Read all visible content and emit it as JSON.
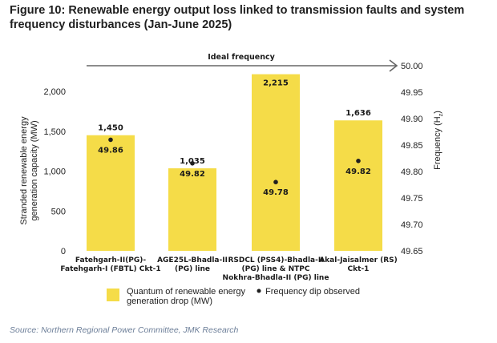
{
  "title": "Figure 10: Renewable energy output loss linked to transmission faults and system frequency disturbances (Jan-June 2025)",
  "source": "Source: Northern Regional Power Committee, JMK Research",
  "colors": {
    "bar": "#f5dc48",
    "dot": "#1f1f1f",
    "arrow": "#666666"
  },
  "chart_data": {
    "type": "bar",
    "title": "Figure 10: Renewable energy output loss linked to transmission faults and system frequency disturbances (Jan-June 2025)",
    "categories": [
      [
        "Fatehgarh-II(PG)-",
        "Fatehgarh-I (FBTL) Ckt-1"
      ],
      [
        "AGE25L-Bhadla-II",
        "(PG) line"
      ],
      [
        "RSDCL (PSS4)-Bhadla-II",
        "(PG) line & NTPC",
        "Nokhra-Bhadla-II (PG) line"
      ],
      [
        "Akal-Jaisalmer (RS)",
        "Ckt-1"
      ]
    ],
    "series": [
      {
        "name": "Quantum of renewable energy generation drop (MW)",
        "type": "bar",
        "axis": "left",
        "values": [
          1450,
          1035,
          2215,
          1636
        ],
        "labels": [
          "1,450",
          "1,035",
          "2,215",
          "1,636"
        ]
      },
      {
        "name": "Frequency dip observed",
        "type": "scatter",
        "axis": "right",
        "values": [
          49.86,
          49.82,
          49.78,
          49.82
        ],
        "labels": [
          "49.86",
          "49.82",
          "49.78",
          "49.82"
        ]
      }
    ],
    "ylabel": "Stranded renewable energy generation capacity (MW)",
    "ylabel_lines": [
      "Stranded renewable energy",
      "generation capacity (MW)"
    ],
    "ylim": [
      0,
      2000
    ],
    "yticks": [
      0,
      500,
      1000,
      1500,
      2000
    ],
    "ytick_labels": [
      "0",
      "500",
      "1,000",
      "1,500",
      "2,000"
    ],
    "y2label": "Frequency (Hz)",
    "y2label_display": "Frequency (H",
    "y2label_sub": "z",
    "y2label_close": ")",
    "y2lim": [
      49.65,
      50.0
    ],
    "y2ticks": [
      49.65,
      49.7,
      49.75,
      49.8,
      49.85,
      49.9,
      49.95,
      50.0
    ],
    "y2tick_labels": [
      "49.65",
      "49.70",
      "49.75",
      "49.80",
      "49.85",
      "49.90",
      "49.95",
      "50.00"
    ],
    "reference_line": {
      "label": "Ideal frequency",
      "value": 50.0,
      "axis": "right"
    },
    "legend": {
      "position": "bottom",
      "items": [
        {
          "marker": "square",
          "lines": [
            "Quantum of renewable energy",
            "generation drop (MW)"
          ]
        },
        {
          "marker": "dot",
          "lines": [
            "Frequency dip observed"
          ]
        }
      ]
    },
    "grid": false
  }
}
